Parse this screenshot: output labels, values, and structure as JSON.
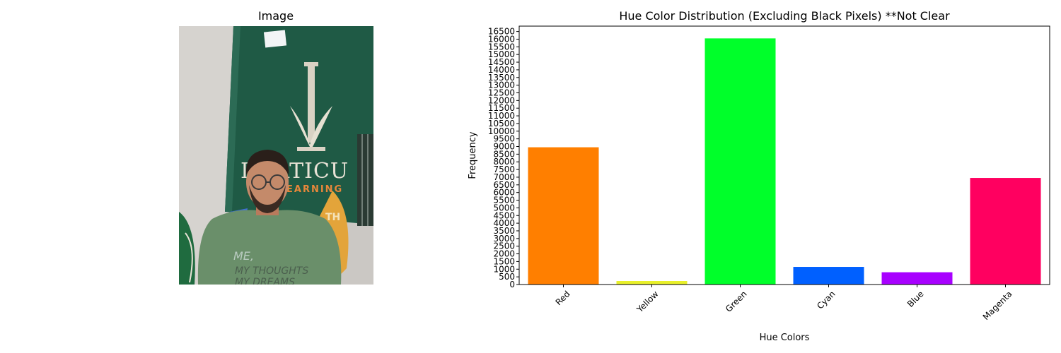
{
  "left_panel": {
    "title": "Image",
    "photo": {
      "sign_text_line1": "I  ARTICU",
      "sign_text_line2": "EARNING",
      "sign_text_badge": "TH",
      "shirt_text_line1": "ME,",
      "shirt_text_line2": "MY THOUGHTS",
      "shirt_text_line3": "MY DREAMS",
      "colors": {
        "wall": "#c9c6c2",
        "board": "#1f5a45",
        "shirt": "#6b8f6a",
        "skin": "#c48a6a",
        "accent": "#e08a3a"
      }
    }
  },
  "chart_data": {
    "type": "bar",
    "title": "Hue Color Distribution (Excluding Black Pixels) **Not Clear",
    "xlabel": "Hue Colors",
    "ylabel": "Frequency",
    "categories": [
      "Red",
      "Yellow",
      "Green",
      "Cyan",
      "Blue",
      "Magenta"
    ],
    "values": [
      8950,
      230,
      16050,
      1150,
      800,
      6950
    ],
    "colors": [
      "#ff7f00",
      "#e8f02a",
      "#00ff2a",
      "#0060ff",
      "#a800ff",
      "#ff0060"
    ],
    "ylim": [
      0,
      16850
    ],
    "yticks": [
      0,
      500,
      1000,
      1500,
      2000,
      2500,
      3000,
      3500,
      4000,
      4500,
      5000,
      5500,
      6000,
      6500,
      7000,
      7500,
      8000,
      8500,
      9000,
      9500,
      10000,
      10500,
      11000,
      11500,
      12000,
      12500,
      13000,
      13500,
      14000,
      14500,
      15000,
      15500,
      16000,
      16500
    ],
    "xtick_rotation": 45,
    "grid": false,
    "legend": "none"
  }
}
